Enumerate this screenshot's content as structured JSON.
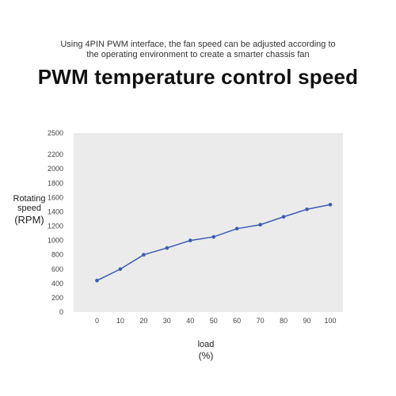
{
  "header": {
    "subtitle_line1": "Using 4PIN PWM interface, the fan speed can be adjusted according to",
    "subtitle_line2": "the operating environment to create a smarter chassis fan",
    "title": "PWM temperature control speed"
  },
  "chart_data": {
    "type": "line",
    "title": "PWM temperature control speed",
    "ylabel_line1": "Rotating",
    "ylabel_line2": "speed",
    "ylabel_unit": "(RPM)",
    "xlabel": "load",
    "xlabel_unit": "(%)",
    "x": [
      0,
      10,
      20,
      30,
      40,
      50,
      60,
      70,
      80,
      90,
      100
    ],
    "y": [
      440,
      600,
      800,
      895,
      1000,
      1050,
      1165,
      1220,
      1330,
      1435,
      1500
    ],
    "xlim": [
      -10,
      100
    ],
    "ylim": [
      0,
      2500
    ],
    "yticks": [
      0,
      200,
      400,
      600,
      800,
      1000,
      1200,
      1400,
      1600,
      1800,
      2000,
      2200,
      2500
    ],
    "grid": false,
    "line_color": "#3d5bb0",
    "plot_background": "#ebebeb"
  }
}
